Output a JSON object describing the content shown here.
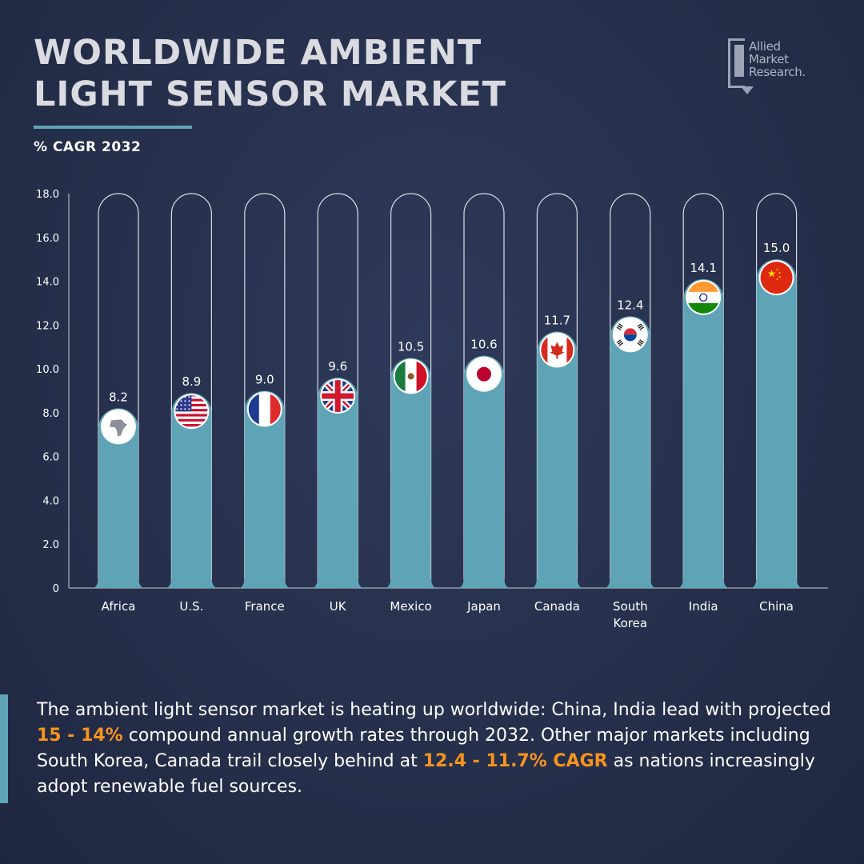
{
  "header": {
    "title_line1": "WORLDWIDE AMBIENT",
    "title_line2": "LIGHT SENSOR MARKET",
    "subtitle": "% CAGR 2032"
  },
  "logo": {
    "line1": "Allied",
    "line2": "Market",
    "line3": "Research."
  },
  "colors": {
    "bar": "#5fa4b6",
    "track_outline": "#ffffff",
    "highlight": "#f7931e",
    "background": "#26304c"
  },
  "chart_data": {
    "type": "bar",
    "title": "",
    "xlabel": "",
    "ylabel": "",
    "ylim": [
      0,
      18
    ],
    "y_ticks": [
      "0",
      "2.0",
      "4.0",
      "6.0",
      "8.0",
      "10.0",
      "12.0",
      "14.0",
      "16.0",
      "18.0"
    ],
    "categories": [
      "Africa",
      "U.S.",
      "France",
      "UK",
      "Mexico",
      "Japan",
      "Canada",
      "South Korea",
      "India",
      "China"
    ],
    "category_lines": [
      [
        "Africa"
      ],
      [
        "U.S."
      ],
      [
        "France"
      ],
      [
        "UK"
      ],
      [
        "Mexico"
      ],
      [
        "Japan"
      ],
      [
        "Canada"
      ],
      [
        "South",
        "Korea"
      ],
      [
        "India"
      ],
      [
        "China"
      ]
    ],
    "values": [
      8.2,
      8.9,
      9.0,
      9.6,
      10.5,
      10.6,
      11.7,
      12.4,
      14.1,
      15.0
    ],
    "value_labels": [
      "8.2",
      "8.9",
      "9.0",
      "9.6",
      "10.5",
      "10.6",
      "11.7",
      "12.4",
      "14.1",
      "15.0"
    ],
    "flag_icons": [
      "africa-map-icon",
      "us-flag-icon",
      "france-flag-icon",
      "uk-flag-icon",
      "mexico-flag-icon",
      "japan-flag-icon",
      "canada-flag-icon",
      "south-korea-flag-icon",
      "india-flag-icon",
      "china-flag-icon"
    ],
    "grid": false,
    "legend": "none"
  },
  "summary": {
    "part1": "The ambient light sensor market is heating up worldwide: China, India lead with projected ",
    "highlight1": "15 - 14%",
    "part2": " compound annual growth rates through 2032. Other major markets including South Korea, Canada trail closely behind at ",
    "highlight2": "12.4  - 11.7% CAGR",
    "part3": " as nations increasingly adopt renewable fuel sources."
  }
}
